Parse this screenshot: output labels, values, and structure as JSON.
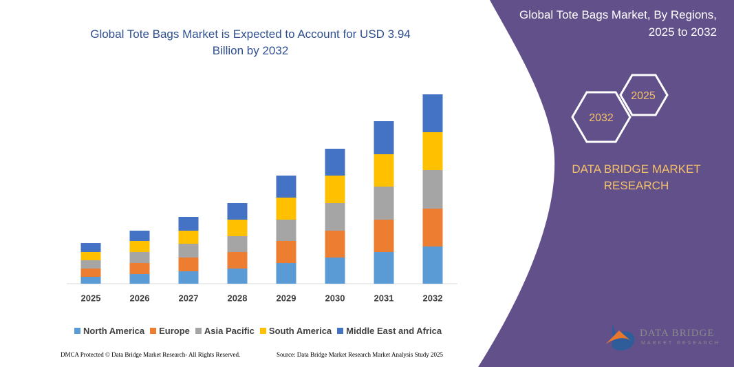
{
  "chart_data": {
    "type": "stacked_bar",
    "title": "Global Tote Bags Market is Expected to Account for USD 3.94 Billion by 2032",
    "categories": [
      "2025",
      "2026",
      "2027",
      "2028",
      "2029",
      "2030",
      "2031",
      "2032"
    ],
    "ylim": [
      0,
      275
    ],
    "series": [
      {
        "name": "North America",
        "color": "#5b9bd5",
        "values": [
          10,
          14,
          18,
          22,
          30,
          38,
          46,
          54
        ]
      },
      {
        "name": "Europe",
        "color": "#ed7d31",
        "values": [
          12,
          16,
          20,
          24,
          32,
          39,
          47,
          55
        ]
      },
      {
        "name": "Asia Pacific",
        "color": "#a5a5a5",
        "values": [
          12,
          16,
          20,
          23,
          31,
          40,
          48,
          56
        ]
      },
      {
        "name": "South America",
        "color": "#ffc000",
        "values": [
          12,
          16,
          19,
          24,
          32,
          40,
          47,
          55
        ]
      },
      {
        "name": "Middle East and Africa",
        "color": "#4472c4",
        "values": [
          13,
          15,
          20,
          24,
          32,
          39,
          48,
          55
        ]
      }
    ]
  },
  "panel": {
    "title": "Global Tote Bags Market, By Regions, 2025 to 2032",
    "hexagons": [
      "2032",
      "2025"
    ],
    "brand": "DATA BRIDGE MARKET RESEARCH"
  },
  "footer": {
    "copyright": "DMCA Protected © Data Bridge Market Research- All Rights Reserved.",
    "source": "Source: Data Bridge Market Research Market Analysis Study 2025"
  },
  "logo": {
    "name": "DATA BRIDGE",
    "tagline": "MARKET RESEARCH"
  }
}
